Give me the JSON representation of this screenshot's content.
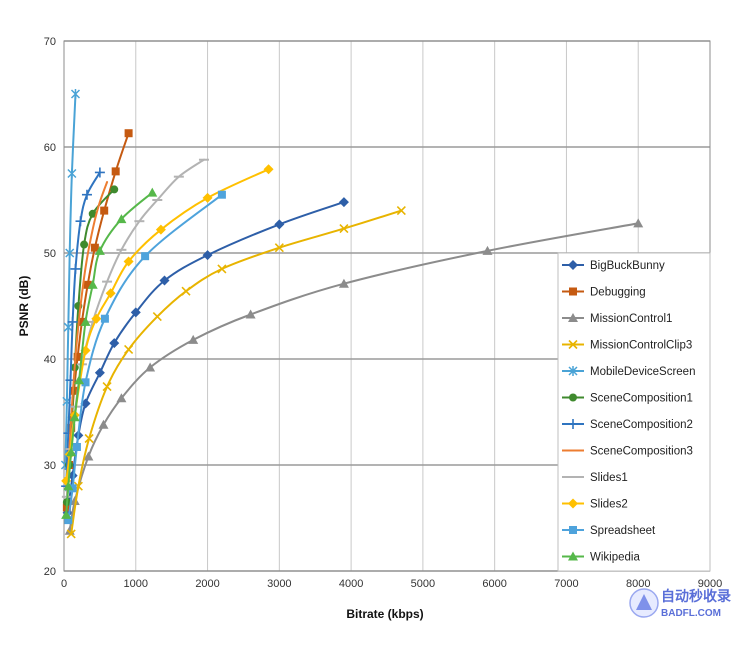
{
  "chart_data": {
    "type": "line",
    "xlabel": "Bitrate (kbps)",
    "ylabel": "PSNR (dB)",
    "xlim": [
      0,
      9000
    ],
    "ylim": [
      20,
      70
    ],
    "xticks": [
      "0",
      "1000",
      "2000",
      "3000",
      "4000",
      "5000",
      "6000",
      "7000",
      "8000",
      "9000"
    ],
    "yticks": [
      "20",
      "30",
      "40",
      "50",
      "60",
      "70"
    ],
    "grid": true,
    "legend_position": "right",
    "series": [
      {
        "name": "BigBuckBunny",
        "color": "#2e5fa8",
        "marker": "diamond",
        "points": [
          [
            50,
            25.5
          ],
          [
            120,
            29
          ],
          [
            200,
            32.8
          ],
          [
            300,
            35.8
          ],
          [
            500,
            38.7
          ],
          [
            700,
            41.5
          ],
          [
            1000,
            44.4
          ],
          [
            1400,
            47.4
          ],
          [
            2000,
            49.8
          ],
          [
            3000,
            52.7
          ],
          [
            3900,
            54.8
          ]
        ]
      },
      {
        "name": "Debugging",
        "color": "#c55a11",
        "marker": "square",
        "points": [
          [
            40,
            26
          ],
          [
            70,
            30
          ],
          [
            100,
            33.5
          ],
          [
            140,
            37
          ],
          [
            190,
            40.2
          ],
          [
            250,
            43.5
          ],
          [
            330,
            47
          ],
          [
            430,
            50.5
          ],
          [
            560,
            54
          ],
          [
            720,
            57.7
          ],
          [
            900,
            61.3
          ]
        ]
      },
      {
        "name": "MissionControl1",
        "color": "#8c8c8c",
        "marker": "triangle",
        "points": [
          [
            80,
            23.8
          ],
          [
            150,
            26.6
          ],
          [
            340,
            30.8
          ],
          [
            550,
            33.8
          ],
          [
            800,
            36.3
          ],
          [
            1200,
            39.2
          ],
          [
            1800,
            41.8
          ],
          [
            2600,
            44.2
          ],
          [
            3900,
            47.1
          ],
          [
            5900,
            50.2
          ],
          [
            8000,
            52.8
          ]
        ]
      },
      {
        "name": "MissionControlClip3",
        "color": "#e8b400",
        "marker": "cross",
        "points": [
          [
            100,
            23.5
          ],
          [
            200,
            28
          ],
          [
            350,
            32.5
          ],
          [
            600,
            37.4
          ],
          [
            900,
            40.9
          ],
          [
            1300,
            44
          ],
          [
            1700,
            46.4
          ],
          [
            2200,
            48.5
          ],
          [
            3000,
            50.5
          ],
          [
            3900,
            52.3
          ],
          [
            4700,
            54
          ]
        ]
      },
      {
        "name": "MobileDeviceScreen",
        "color": "#4aa3d6",
        "marker": "star",
        "points": [
          [
            20,
            30
          ],
          [
            40,
            36
          ],
          [
            60,
            43
          ],
          [
            80,
            50
          ],
          [
            110,
            57.5
          ],
          [
            160,
            65
          ]
        ]
      },
      {
        "name": "SceneComposition1",
        "color": "#3f8a2e",
        "marker": "circle",
        "points": [
          [
            40,
            26.5
          ],
          [
            70,
            30
          ],
          [
            110,
            34.5
          ],
          [
            150,
            39.2
          ],
          [
            200,
            45
          ],
          [
            280,
            50.8
          ],
          [
            400,
            53.7
          ],
          [
            700,
            56
          ]
        ]
      },
      {
        "name": "SceneComposition2",
        "color": "#2f74c0",
        "marker": "plus",
        "points": [
          [
            30,
            28
          ],
          [
            60,
            33
          ],
          [
            90,
            38
          ],
          [
            120,
            43.5
          ],
          [
            160,
            48.5
          ],
          [
            230,
            53
          ],
          [
            320,
            55.5
          ],
          [
            500,
            57.6
          ]
        ]
      },
      {
        "name": "SceneComposition3",
        "color": "#ed7d31",
        "marker": "none",
        "points": [
          [
            40,
            27
          ],
          [
            80,
            32
          ],
          [
            120,
            36.5
          ],
          [
            170,
            41
          ],
          [
            230,
            45
          ],
          [
            300,
            48.6
          ],
          [
            380,
            51.6
          ],
          [
            480,
            54.4
          ],
          [
            600,
            56.7
          ]
        ]
      },
      {
        "name": "Slides1",
        "color": "#b3b3b3",
        "marker": "dash",
        "points": [
          [
            40,
            27
          ],
          [
            90,
            31.5
          ],
          [
            160,
            35.5
          ],
          [
            250,
            39.5
          ],
          [
            400,
            43.5
          ],
          [
            600,
            47.3
          ],
          [
            800,
            50.3
          ],
          [
            1050,
            53
          ],
          [
            1300,
            55
          ],
          [
            1600,
            57.2
          ],
          [
            1950,
            58.8
          ]
        ]
      },
      {
        "name": "Slides2",
        "color": "#ffc000",
        "marker": "diamond",
        "points": [
          [
            30,
            28.5
          ],
          [
            80,
            31
          ],
          [
            150,
            34.7
          ],
          [
            300,
            40.8
          ],
          [
            450,
            43.8
          ],
          [
            650,
            46.2
          ],
          [
            900,
            49.2
          ],
          [
            1350,
            52.2
          ],
          [
            2000,
            55.2
          ],
          [
            2850,
            57.9
          ]
        ]
      },
      {
        "name": "Spreadsheet",
        "color": "#4ea3dc",
        "marker": "square",
        "points": [
          [
            60,
            24.8
          ],
          [
            120,
            27.8
          ],
          [
            180,
            31.7
          ],
          [
            300,
            37.8
          ],
          [
            570,
            43.8
          ],
          [
            1130,
            49.7
          ],
          [
            2200,
            55.5
          ]
        ]
      },
      {
        "name": "Wikipedia",
        "color": "#56b84a",
        "marker": "triangle",
        "points": [
          [
            30,
            25.3
          ],
          [
            60,
            28
          ],
          [
            100,
            31.2
          ],
          [
            150,
            34.5
          ],
          [
            210,
            38
          ],
          [
            300,
            43.5
          ],
          [
            400,
            47
          ],
          [
            500,
            50.2
          ],
          [
            800,
            53.2
          ],
          [
            1230,
            55.7
          ]
        ]
      }
    ]
  },
  "watermark": {
    "line1": "自动秒收录",
    "line2": "BADFL.COM"
  }
}
